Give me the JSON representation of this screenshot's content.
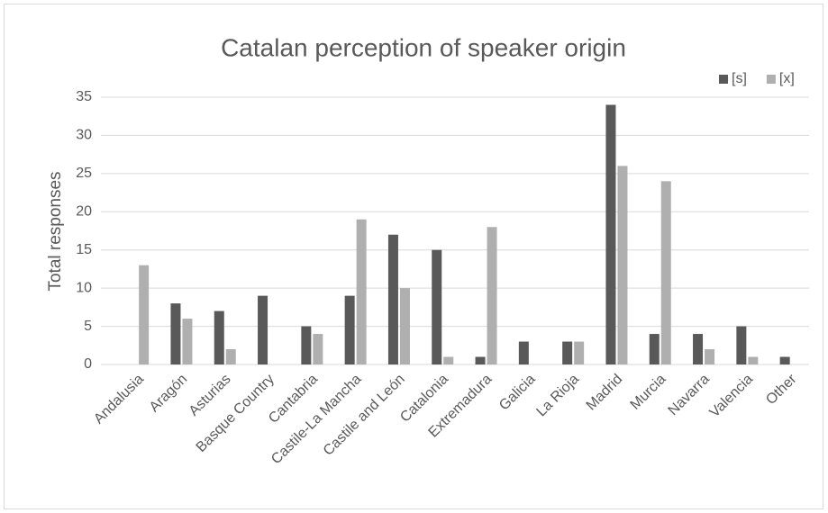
{
  "chart_data": {
    "type": "bar",
    "title": "Catalan perception of speaker origin",
    "y_label": "Total responses",
    "categories": [
      "Andalusia",
      "Aragón",
      "Asturias",
      "Basque Country",
      "Cantabria",
      "Castile-La Mancha",
      "Castile and León",
      "Catalonia",
      "Extremadura",
      "Galicia",
      "La Rioja",
      "Madrid",
      "Murcia",
      "Navarra",
      "Valencia",
      "Other"
    ],
    "series": [
      {
        "name": "[s]",
        "color": "#595959",
        "values": [
          0,
          8,
          7,
          9,
          5,
          9,
          17,
          15,
          1,
          3,
          3,
          34,
          4,
          4,
          5,
          1
        ]
      },
      {
        "name": "[x]",
        "color": "#afafaf",
        "values": [
          13,
          6,
          2,
          0,
          4,
          19,
          10,
          1,
          18,
          0,
          3,
          26,
          24,
          2,
          1,
          0
        ]
      }
    ],
    "ylim": [
      0,
      35
    ],
    "yticks": [
      0,
      5,
      10,
      15,
      20,
      25,
      30,
      35
    ],
    "grid": true,
    "legend": "top-right"
  }
}
